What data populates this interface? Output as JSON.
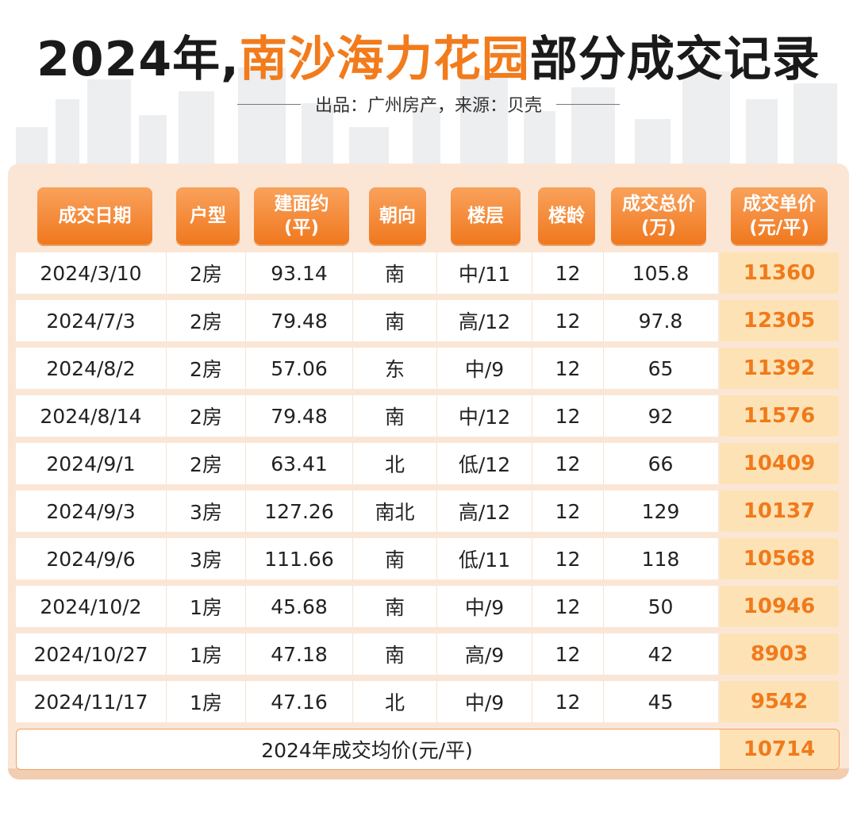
{
  "header": {
    "title_prefix": "2024年,",
    "title_highlight": "南沙海力花园",
    "title_suffix": "部分成交记录",
    "subtitle": "出品：广州房产，来源：贝壳"
  },
  "table": {
    "columns": [
      {
        "line1": "成交日期",
        "line2": ""
      },
      {
        "line1": "户型",
        "line2": ""
      },
      {
        "line1": "建面约",
        "line2": "(平)"
      },
      {
        "line1": "朝向",
        "line2": ""
      },
      {
        "line1": "楼层",
        "line2": ""
      },
      {
        "line1": "楼龄",
        "line2": ""
      },
      {
        "line1": "成交总价",
        "line2": "(万)"
      },
      {
        "line1": "成交单价",
        "line2": "(元/平)"
      }
    ],
    "rows": [
      {
        "date": "2024/3/10",
        "layout": "2房",
        "area": "93.14",
        "orientation": "南",
        "floor": "中/11",
        "age": "12",
        "total": "105.8",
        "unit_price": "11360"
      },
      {
        "date": "2024/7/3",
        "layout": "2房",
        "area": "79.48",
        "orientation": "南",
        "floor": "高/12",
        "age": "12",
        "total": "97.8",
        "unit_price": "12305"
      },
      {
        "date": "2024/8/2",
        "layout": "2房",
        "area": "57.06",
        "orientation": "东",
        "floor": "中/9",
        "age": "12",
        "total": "65",
        "unit_price": "11392"
      },
      {
        "date": "2024/8/14",
        "layout": "2房",
        "area": "79.48",
        "orientation": "南",
        "floor": "中/12",
        "age": "12",
        "total": "92",
        "unit_price": "11576"
      },
      {
        "date": "2024/9/1",
        "layout": "2房",
        "area": "63.41",
        "orientation": "北",
        "floor": "低/12",
        "age": "12",
        "total": "66",
        "unit_price": "10409"
      },
      {
        "date": "2024/9/3",
        "layout": "3房",
        "area": "127.26",
        "orientation": "南北",
        "floor": "高/12",
        "age": "12",
        "total": "129",
        "unit_price": "10137"
      },
      {
        "date": "2024/9/6",
        "layout": "3房",
        "area": "111.66",
        "orientation": "南",
        "floor": "低/11",
        "age": "12",
        "total": "118",
        "unit_price": "10568"
      },
      {
        "date": "2024/10/2",
        "layout": "1房",
        "area": "45.68",
        "orientation": "南",
        "floor": "中/9",
        "age": "12",
        "total": "50",
        "unit_price": "10946"
      },
      {
        "date": "2024/10/27",
        "layout": "1房",
        "area": "47.18",
        "orientation": "南",
        "floor": "高/9",
        "age": "12",
        "total": "42",
        "unit_price": "8903"
      },
      {
        "date": "2024/11/17",
        "layout": "1房",
        "area": "47.16",
        "orientation": "北",
        "floor": "中/9",
        "age": "12",
        "total": "45",
        "unit_price": "9542"
      }
    ],
    "average": {
      "label": "2024年成交均价(元/平)",
      "value": "10714"
    }
  },
  "colors": {
    "accent_orange": "#f27b1c",
    "price_bg": "#fde2b6",
    "panel_bg": "#fbe6d6"
  }
}
